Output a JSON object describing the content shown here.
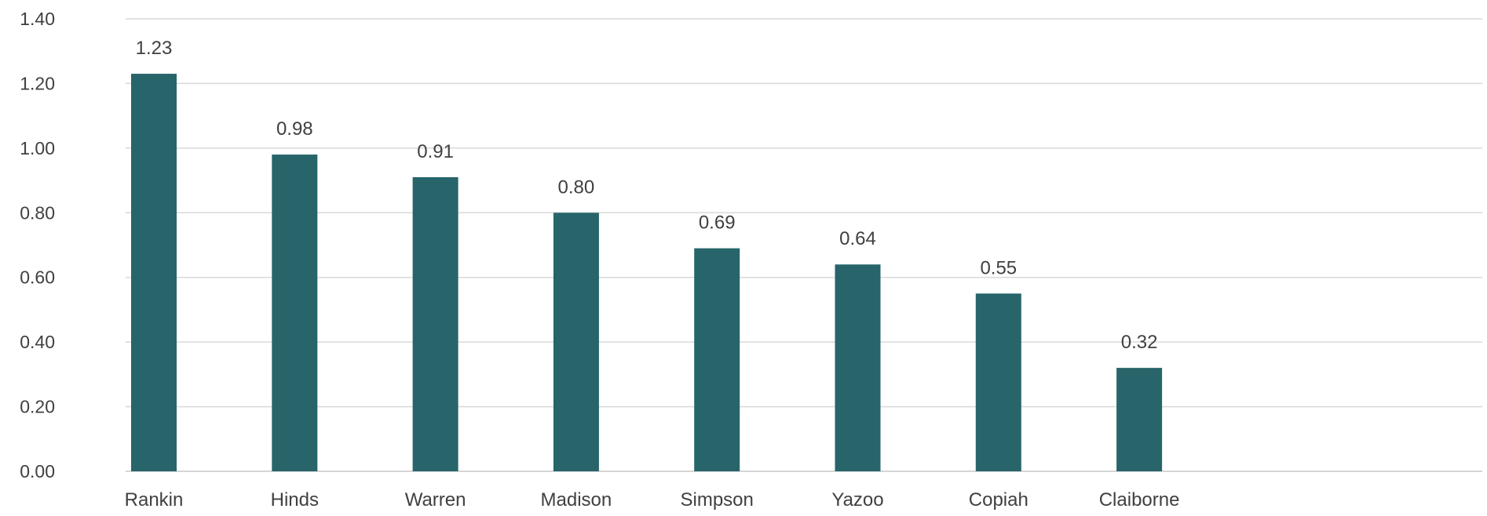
{
  "chart_data": {
    "type": "bar",
    "categories": [
      "Rankin",
      "Hinds",
      "Warren",
      "Madison",
      "Simpson",
      "Yazoo",
      "Copiah",
      "Claiborne"
    ],
    "values": [
      1.23,
      0.98,
      0.91,
      0.8,
      0.69,
      0.64,
      0.55,
      0.32
    ],
    "data_labels": [
      "1.23",
      "0.98",
      "0.91",
      "0.80",
      "0.69",
      "0.64",
      "0.55",
      "0.32"
    ],
    "y_ticks": [
      0,
      0.2,
      0.4,
      0.6,
      0.8,
      1.0,
      1.2,
      1.4
    ],
    "y_tick_labels": [
      "0.00",
      "0.20",
      "0.40",
      "0.60",
      "0.80",
      "1.00",
      "1.20",
      "1.40"
    ],
    "ylim": [
      0,
      1.4
    ],
    "title": "",
    "xlabel": "",
    "ylabel": "",
    "grid": true,
    "legend": "none",
    "bar_color": "#27656a"
  }
}
